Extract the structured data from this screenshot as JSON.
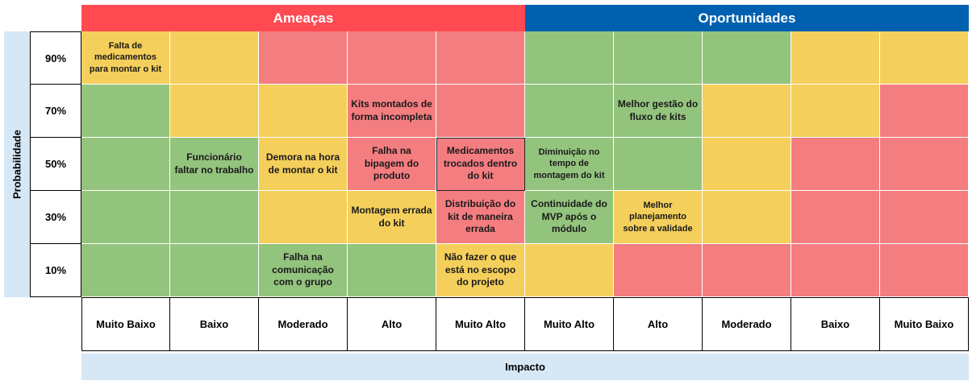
{
  "headers": {
    "threats": "Ameaças",
    "opportunities": "Oportunidades"
  },
  "axis": {
    "probability": "Probabilidade",
    "impact": "Impacto"
  },
  "probabilities": [
    "90%",
    "70%",
    "50%",
    "30%",
    "10%"
  ],
  "impacts": [
    "Muito Baixo",
    "Baixo",
    "Moderado",
    "Alto",
    "Muito Alto",
    "Muito Alto",
    "Alto",
    "Moderado",
    "Baixo",
    "Muito Baixo"
  ],
  "colors": {
    "green": "#93c47d",
    "yellow": "#f4cf5b",
    "red": "#f47d80",
    "threats": "#ff4a52",
    "opportunities": "#0060b0",
    "axis_band": "#d6e7f5"
  },
  "matrix": [
    [
      {
        "color": "y",
        "text": "Falta de medicamentos para montar o kit",
        "size": "fs11"
      },
      {
        "color": "y",
        "text": ""
      },
      {
        "color": "r",
        "text": ""
      },
      {
        "color": "r",
        "text": ""
      },
      {
        "color": "r",
        "text": ""
      },
      {
        "color": "g",
        "text": ""
      },
      {
        "color": "g",
        "text": ""
      },
      {
        "color": "g",
        "text": ""
      },
      {
        "color": "y",
        "text": ""
      },
      {
        "color": "y",
        "text": ""
      }
    ],
    [
      {
        "color": "g",
        "text": ""
      },
      {
        "color": "y",
        "text": ""
      },
      {
        "color": "y",
        "text": ""
      },
      {
        "color": "r",
        "text": "Kits montados de forma incompleta",
        "size": "fs12"
      },
      {
        "color": "r",
        "text": ""
      },
      {
        "color": "g",
        "text": ""
      },
      {
        "color": "g",
        "text": "Melhor gestão do fluxo de kits",
        "size": "fs12"
      },
      {
        "color": "y",
        "text": ""
      },
      {
        "color": "y",
        "text": ""
      },
      {
        "color": "r",
        "text": ""
      }
    ],
    [
      {
        "color": "g",
        "text": ""
      },
      {
        "color": "g",
        "text": "Funcionário faltar no trabalho",
        "size": "fs12"
      },
      {
        "color": "y",
        "text": "Demora na hora de montar o kit",
        "size": "fs12"
      },
      {
        "color": "r",
        "text": "Falha na bipagem do produto",
        "size": "fs12"
      },
      {
        "color": "r",
        "text": "Medicamentos trocados dentro do kit",
        "size": "fs12",
        "selected": true
      },
      {
        "color": "g",
        "text": "Diminuição no tempo de montagem do kit",
        "size": "fs11"
      },
      {
        "color": "g",
        "text": ""
      },
      {
        "color": "y",
        "text": ""
      },
      {
        "color": "r",
        "text": ""
      },
      {
        "color": "r",
        "text": ""
      }
    ],
    [
      {
        "color": "g",
        "text": ""
      },
      {
        "color": "g",
        "text": ""
      },
      {
        "color": "y",
        "text": ""
      },
      {
        "color": "y",
        "text": "Montagem errada do kit",
        "size": "fs12"
      },
      {
        "color": "r",
        "text": "Distribuição do kit de maneira errada",
        "size": "fs12"
      },
      {
        "color": "g",
        "text": "Continuidade do MVP após o módulo",
        "size": "fs12"
      },
      {
        "color": "y",
        "text": "Melhor planejamento sobre a validade",
        "size": "fs11"
      },
      {
        "color": "y",
        "text": ""
      },
      {
        "color": "r",
        "text": ""
      },
      {
        "color": "r",
        "text": ""
      }
    ],
    [
      {
        "color": "g",
        "text": ""
      },
      {
        "color": "g",
        "text": ""
      },
      {
        "color": "g",
        "text": "Falha na comunicação com o grupo",
        "size": "fs12"
      },
      {
        "color": "g",
        "text": ""
      },
      {
        "color": "y",
        "text": "Não fazer o que está no escopo do projeto",
        "size": "fs12"
      },
      {
        "color": "y",
        "text": ""
      },
      {
        "color": "r",
        "text": ""
      },
      {
        "color": "r",
        "text": ""
      },
      {
        "color": "r",
        "text": ""
      },
      {
        "color": "r",
        "text": ""
      }
    ]
  ]
}
